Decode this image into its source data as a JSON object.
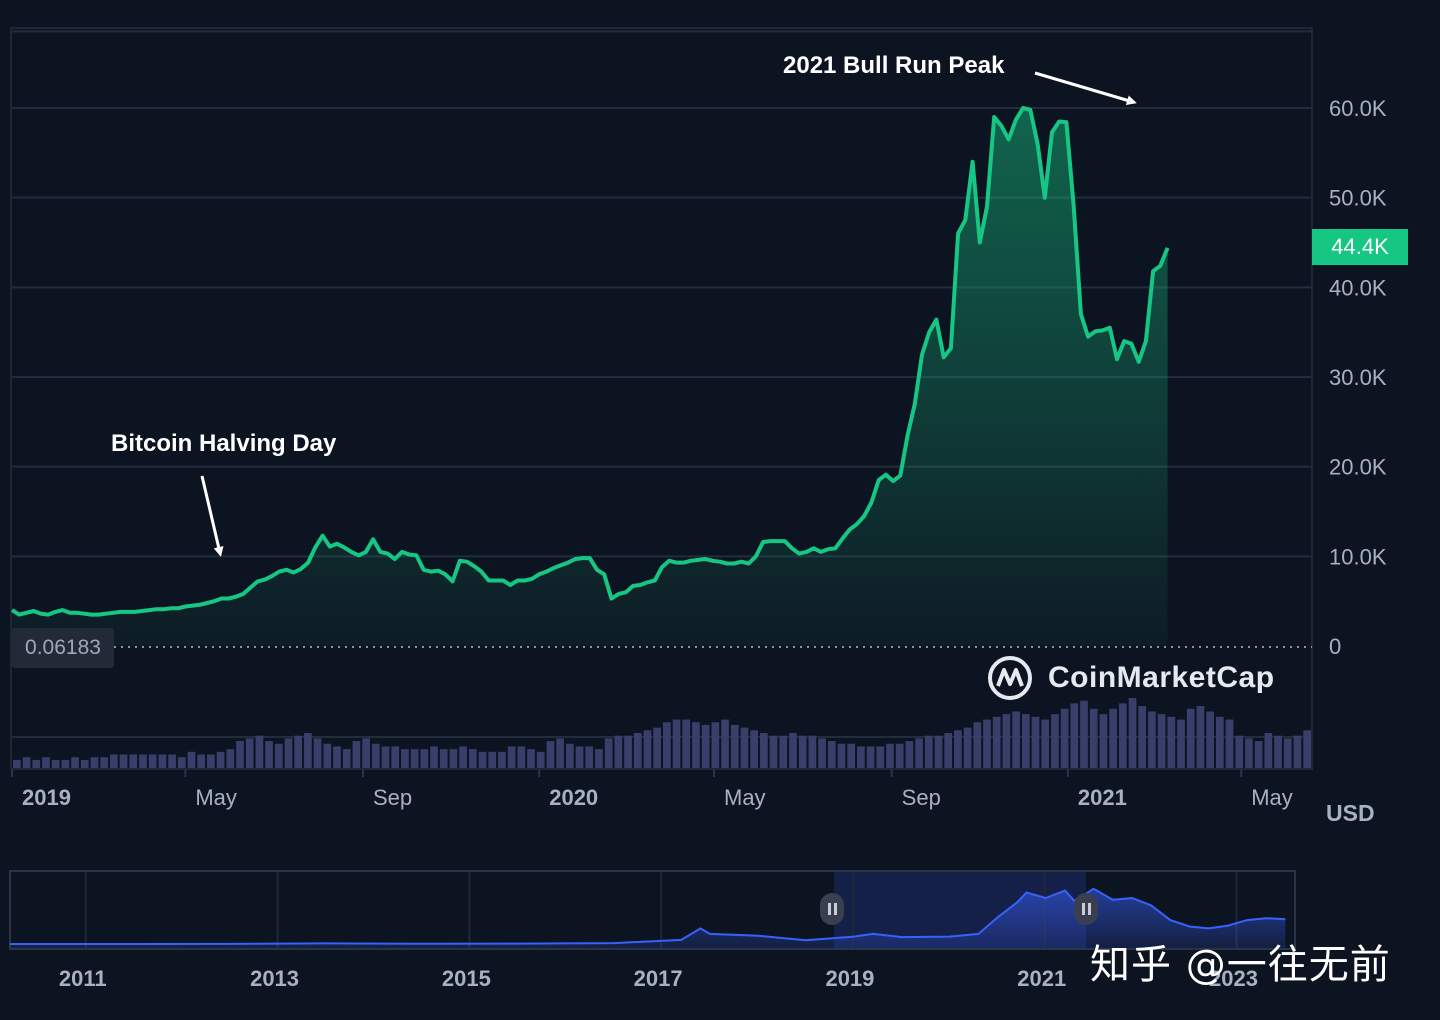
{
  "chart_data": [
    {
      "type": "area",
      "series": [
        {
          "values": [
            [
              0,
              4000
            ],
            [
              5,
              3500
            ],
            [
              10,
              3700
            ],
            [
              15,
              3900
            ],
            [
              20,
              3600
            ],
            [
              25,
              3500
            ],
            [
              30,
              3800
            ],
            [
              35,
              4000
            ],
            [
              40,
              3700
            ],
            [
              45,
              3700
            ],
            [
              50,
              3600
            ],
            [
              55,
              3500
            ],
            [
              60,
              3500
            ],
            [
              65,
              3600
            ],
            [
              70,
              3700
            ],
            [
              75,
              3800
            ],
            [
              80,
              3800
            ],
            [
              85,
              3800
            ],
            [
              90,
              3900
            ],
            [
              95,
              4000
            ],
            [
              100,
              4100
            ],
            [
              105,
              4100
            ],
            [
              110,
              4200
            ],
            [
              115,
              4200
            ],
            [
              120,
              4400
            ],
            [
              125,
              4500
            ],
            [
              130,
              4600
            ],
            [
              135,
              4800
            ],
            [
              140,
              5000
            ],
            [
              145,
              5300
            ],
            [
              150,
              5300
            ],
            [
              155,
              5500
            ],
            [
              160,
              5800
            ],
            [
              165,
              6500
            ],
            [
              170,
              7200
            ],
            [
              175,
              7400
            ],
            [
              180,
              7800
            ],
            [
              185,
              8300
            ],
            [
              190,
              8500
            ],
            [
              195,
              8200
            ],
            [
              200,
              8600
            ],
            [
              205,
              9300
            ],
            [
              210,
              11000
            ],
            [
              215,
              12300
            ],
            [
              220,
              11100
            ],
            [
              225,
              11400
            ],
            [
              230,
              11000
            ],
            [
              235,
              10500
            ],
            [
              240,
              10100
            ],
            [
              245,
              10500
            ],
            [
              250,
              11900
            ],
            [
              255,
              10500
            ],
            [
              260,
              10300
            ],
            [
              265,
              9700
            ],
            [
              270,
              10500
            ],
            [
              275,
              10200
            ],
            [
              280,
              10100
            ],
            [
              285,
              8500
            ],
            [
              290,
              8300
            ],
            [
              295,
              8400
            ],
            [
              300,
              8000
            ],
            [
              305,
              7200
            ],
            [
              310,
              9500
            ],
            [
              315,
              9400
            ],
            [
              320,
              8900
            ],
            [
              325,
              8300
            ],
            [
              330,
              7300
            ],
            [
              335,
              7300
            ],
            [
              340,
              7300
            ],
            [
              345,
              6800
            ],
            [
              350,
              7300
            ],
            [
              355,
              7300
            ],
            [
              360,
              7500
            ],
            [
              365,
              8000
            ],
            [
              370,
              8300
            ],
            [
              375,
              8700
            ],
            [
              380,
              9000
            ],
            [
              385,
              9300
            ],
            [
              390,
              9700
            ],
            [
              395,
              9800
            ],
            [
              400,
              9800
            ],
            [
              405,
              8500
            ],
            [
              410,
              8000
            ],
            [
              415,
              5300
            ],
            [
              420,
              5800
            ],
            [
              425,
              6000
            ],
            [
              430,
              6700
            ],
            [
              435,
              6800
            ],
            [
              440,
              7100
            ],
            [
              445,
              7300
            ],
            [
              450,
              8800
            ],
            [
              455,
              9500
            ],
            [
              460,
              9300
            ],
            [
              465,
              9300
            ],
            [
              470,
              9500
            ],
            [
              475,
              9600
            ],
            [
              480,
              9700
            ],
            [
              485,
              9500
            ],
            [
              490,
              9400
            ],
            [
              495,
              9200
            ],
            [
              500,
              9200
            ],
            [
              505,
              9400
            ],
            [
              510,
              9200
            ],
            [
              515,
              10000
            ],
            [
              520,
              11600
            ],
            [
              525,
              11700
            ],
            [
              530,
              11700
            ],
            [
              535,
              11700
            ],
            [
              540,
              10900
            ],
            [
              545,
              10300
            ],
            [
              550,
              10500
            ],
            [
              555,
              10900
            ],
            [
              560,
              10500
            ],
            [
              565,
              10800
            ],
            [
              570,
              10900
            ],
            [
              575,
              12000
            ],
            [
              580,
              13000
            ],
            [
              585,
              13600
            ],
            [
              590,
              14500
            ],
            [
              595,
              16000
            ],
            [
              600,
              18500
            ],
            [
              605,
              19100
            ],
            [
              610,
              18400
            ],
            [
              615,
              19000
            ],
            [
              620,
              23500
            ],
            [
              625,
              27000
            ],
            [
              630,
              32500
            ],
            [
              635,
              35000
            ],
            [
              640,
              36400
            ],
            [
              645,
              32200
            ],
            [
              650,
              33200
            ],
            [
              655,
              46000
            ],
            [
              660,
              47500
            ],
            [
              665,
              54000
            ],
            [
              670,
              45000
            ],
            [
              675,
              49000
            ],
            [
              680,
              59000
            ],
            [
              685,
              58000
            ],
            [
              690,
              56500
            ],
            [
              695,
              58700
            ],
            [
              700,
              60000
            ],
            [
              705,
              59800
            ],
            [
              710,
              56000
            ],
            [
              715,
              50000
            ],
            [
              720,
              57300
            ],
            [
              725,
              58500
            ],
            [
              730,
              58400
            ],
            [
              735,
              49000
            ],
            [
              740,
              37000
            ],
            [
              745,
              34500
            ],
            [
              750,
              35100
            ],
            [
              755,
              35200
            ],
            [
              760,
              35500
            ],
            [
              765,
              32000
            ],
            [
              770,
              34000
            ],
            [
              775,
              33700
            ],
            [
              780,
              31700
            ],
            [
              785,
              34000
            ],
            [
              790,
              41800
            ],
            [
              795,
              42400
            ],
            [
              800,
              44400
            ]
          ]
        }
      ],
      "y_ticks": [
        "0",
        "10.0K",
        "20.0K",
        "30.0K",
        "40.0K",
        "50.0K",
        "60.0K"
      ],
      "y_tick_values": [
        0,
        10000,
        20000,
        30000,
        40000,
        50000,
        60000
      ],
      "x_ticks": [
        "2019",
        "May",
        "Sep",
        "2020",
        "May",
        "Sep",
        "2021",
        "May"
      ],
      "x_tick_positions": [
        0,
        120,
        243,
        365,
        486,
        609,
        731,
        851
      ],
      "x_tick_bold": [
        true,
        false,
        false,
        true,
        false,
        false,
        true,
        false
      ],
      "ylim": [
        0,
        70000
      ],
      "xlim": [
        0,
        900
      ],
      "current_price_label": "44.4K",
      "min_label": "0.06183",
      "unit": "USD",
      "grid": true,
      "annotations": [
        {
          "text": "Bitcoin Halving Day",
          "x": 140,
          "y": 5000
        },
        {
          "text": "2021 Bull Run Peak",
          "x": 700,
          "y": 60000
        }
      ],
      "volume_levels": [
        3,
        4,
        3,
        4,
        3,
        3,
        4,
        3,
        4,
        4,
        5,
        5,
        5,
        5,
        5,
        5,
        5,
        4,
        6,
        5,
        5,
        6,
        7,
        10,
        11,
        12,
        10,
        9,
        11,
        12,
        13,
        11,
        9,
        8,
        7,
        10,
        11,
        9,
        8,
        8,
        7,
        7,
        7,
        8,
        7,
        7,
        8,
        7,
        6,
        6,
        6,
        8,
        8,
        7,
        6,
        10,
        11,
        9,
        8,
        8,
        7,
        11,
        12,
        12,
        13,
        14,
        15,
        17,
        18,
        18,
        17,
        16,
        17,
        18,
        16,
        15,
        14,
        13,
        12,
        12,
        13,
        12,
        12,
        11,
        10,
        9,
        9,
        8,
        8,
        8,
        9,
        9,
        10,
        11,
        12,
        12,
        13,
        14,
        15,
        17,
        18,
        19,
        20,
        21,
        20,
        19,
        18,
        20,
        22,
        24,
        25,
        22,
        20,
        22,
        24,
        26,
        23,
        21,
        20,
        19,
        18,
        22,
        23,
        21,
        19,
        18,
        12,
        11,
        10,
        13,
        12,
        11,
        12,
        14
      ],
      "volume_max": 26
    },
    {
      "type": "area",
      "x_ticks": [
        "2011",
        "2013",
        "2015",
        "2017",
        "2019",
        "2021",
        "2023"
      ],
      "x_tick_positions": [
        0,
        2,
        4,
        6,
        8,
        10,
        12
      ],
      "xlim": [
        -0.3,
        13.1
      ],
      "series": [
        {
          "values": [
            [
              -0.3,
              0
            ],
            [
              1.0,
              0
            ],
            [
              2.0,
              100
            ],
            [
              3.0,
              600
            ],
            [
              4.0,
              300
            ],
            [
              5.0,
              400
            ],
            [
              6.0,
              1000
            ],
            [
              6.7,
              4500
            ],
            [
              6.9,
              17000
            ],
            [
              7.0,
              11000
            ],
            [
              7.5,
              9000
            ],
            [
              8.0,
              4000
            ],
            [
              8.5,
              8000
            ],
            [
              8.7,
              11000
            ],
            [
              9.0,
              7500
            ],
            [
              9.5,
              8000
            ],
            [
              9.8,
              11000
            ],
            [
              10.0,
              29000
            ],
            [
              10.2,
              45000
            ],
            [
              10.3,
              56000
            ],
            [
              10.5,
              50000
            ],
            [
              10.7,
              58000
            ],
            [
              10.8,
              47000
            ],
            [
              11.0,
              60000
            ],
            [
              11.2,
              48000
            ],
            [
              11.4,
              50000
            ],
            [
              11.6,
              42000
            ],
            [
              11.8,
              26000
            ],
            [
              12.0,
              19000
            ],
            [
              12.2,
              17000
            ],
            [
              12.4,
              20000
            ],
            [
              12.6,
              26000
            ],
            [
              12.8,
              28000
            ],
            [
              13.0,
              27000
            ]
          ]
        }
      ],
      "ylim": [
        0,
        75000
      ]
    }
  ],
  "logo": {
    "name": "CoinMarketCap"
  },
  "watermark": {
    "text": "知乎 @一往无前"
  },
  "colors": {
    "background": "#0d1421",
    "line": "#16c784",
    "fill_top": "#16c784",
    "grid": "#222c3d",
    "axis_text": "#a7b1c2",
    "volume_bar": "#3a3e6a",
    "nav_line": "#3861fb",
    "nav_fill": "#1d2a6a"
  }
}
